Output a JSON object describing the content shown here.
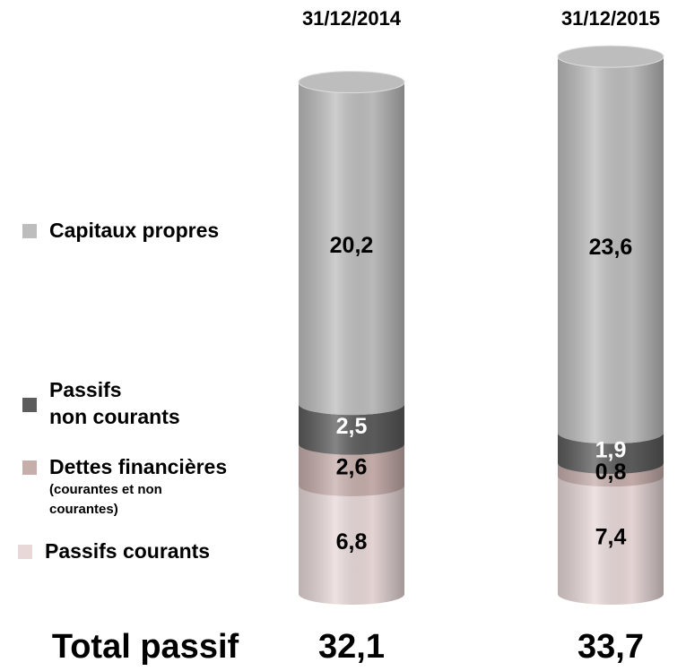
{
  "chart_data": {
    "type": "cylinder-stack",
    "categories": [
      "31/12/2014",
      "31/12/2015"
    ],
    "series": [
      {
        "name": "Passifs courants",
        "color": "#e8d8d8",
        "values": [
          6.8,
          7.4
        ],
        "value_labels": [
          "6,8",
          "7,4"
        ]
      },
      {
        "name": "Dettes financières",
        "note": "(courantes et non\ncourantes)",
        "color": "#c6aeab",
        "values": [
          2.6,
          0.8
        ],
        "value_labels": [
          "2,6",
          "0,8"
        ]
      },
      {
        "name": "Passifs\nnon courants",
        "color": "#5c5c5c",
        "values": [
          2.5,
          1.9
        ],
        "value_labels": [
          "2,5",
          "1,9"
        ]
      },
      {
        "name": "Capitaux propres",
        "color": "#bdbdbd",
        "values": [
          20.2,
          23.6
        ],
        "value_labels": [
          "20,2",
          "23,6"
        ]
      }
    ],
    "total_label": "Total passif",
    "totals": [
      32.1,
      33.7
    ],
    "total_labels": [
      "32,1",
      "33,7"
    ]
  }
}
